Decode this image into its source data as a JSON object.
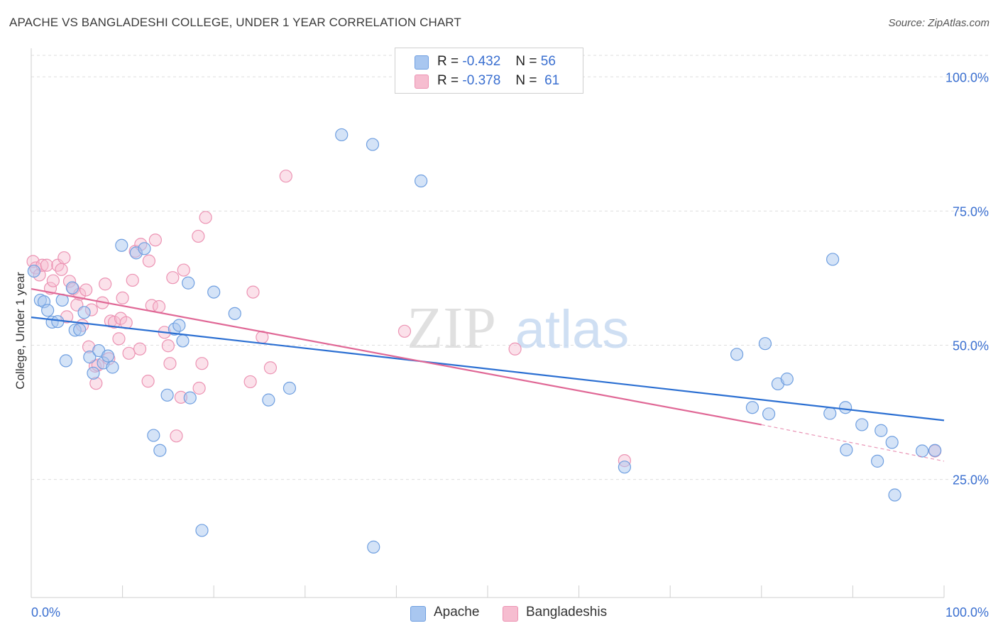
{
  "header": {
    "title": "APACHE VS BANGLADESHI COLLEGE, UNDER 1 YEAR CORRELATION CHART",
    "source": "Source: ZipAtlas.com"
  },
  "watermark": {
    "zip": "ZIP",
    "atlas": "atlas"
  },
  "legend": {
    "apache": {
      "r_label": "R =",
      "r_value": "-0.432",
      "n_label": "N =",
      "n_value": "56"
    },
    "bangladeshi": {
      "r_label": "R =",
      "r_value": "-0.378",
      "n_label": "N =",
      "n_value": "61"
    }
  },
  "bottom_legend": {
    "apache": "Apache",
    "bangladeshi": "Bangladeshis"
  },
  "colors": {
    "apache_fill": "#a9c7f0",
    "apache_stroke": "#6f9fe0",
    "apache_line": "#2b6fd2",
    "bang_fill": "#f6bdd0",
    "bang_stroke": "#ec93b3",
    "bang_line": "#e06896",
    "axis_text": "#3a6fd0"
  },
  "chart_data": {
    "type": "scatter",
    "title": "APACHE VS BANGLADESHI COLLEGE, UNDER 1 YEAR CORRELATION CHART",
    "xlabel": "",
    "ylabel": "College, Under 1 year",
    "xlim": [
      0,
      100
    ],
    "ylim": [
      3,
      104
    ],
    "x_tick_labels": [
      "0.0%",
      "100.0%"
    ],
    "y_ticks": [
      25,
      50,
      75,
      100
    ],
    "y_tick_labels": [
      "25.0%",
      "50.0%",
      "75.0%",
      "100.0%"
    ],
    "grid": true,
    "series": [
      {
        "name": "Apache",
        "r": -0.432,
        "n": 56,
        "trend": {
          "x": [
            0,
            100
          ],
          "y": [
            55.2,
            36.0
          ]
        },
        "points": [
          [
            0.3,
            63.8
          ],
          [
            1.0,
            58.4
          ],
          [
            1.4,
            58.1
          ],
          [
            1.8,
            56.5
          ],
          [
            2.3,
            54.3
          ],
          [
            2.9,
            54.4
          ],
          [
            3.4,
            58.4
          ],
          [
            3.8,
            47.1
          ],
          [
            4.5,
            60.7
          ],
          [
            4.8,
            52.8
          ],
          [
            5.3,
            52.9
          ],
          [
            5.8,
            56.1
          ],
          [
            6.4,
            47.8
          ],
          [
            6.8,
            44.8
          ],
          [
            7.4,
            49.0
          ],
          [
            7.9,
            46.7
          ],
          [
            8.4,
            48.0
          ],
          [
            8.9,
            45.9
          ],
          [
            9.9,
            68.6
          ],
          [
            11.5,
            67.2
          ],
          [
            12.4,
            68.0
          ],
          [
            13.4,
            33.2
          ],
          [
            14.1,
            30.4
          ],
          [
            14.9,
            40.7
          ],
          [
            15.7,
            53.0
          ],
          [
            16.2,
            53.7
          ],
          [
            16.6,
            50.8
          ],
          [
            17.2,
            61.6
          ],
          [
            17.4,
            40.2
          ],
          [
            18.7,
            15.5
          ],
          [
            20.0,
            59.9
          ],
          [
            22.3,
            55.9
          ],
          [
            26.0,
            39.8
          ],
          [
            28.3,
            42.0
          ],
          [
            34.0,
            89.2
          ],
          [
            37.4,
            87.4
          ],
          [
            37.5,
            12.4
          ],
          [
            42.7,
            80.6
          ],
          [
            65.0,
            27.3
          ],
          [
            77.3,
            48.3
          ],
          [
            79.0,
            38.4
          ],
          [
            80.4,
            50.3
          ],
          [
            80.8,
            37.2
          ],
          [
            81.8,
            42.8
          ],
          [
            82.8,
            43.7
          ],
          [
            87.5,
            37.3
          ],
          [
            87.8,
            66.0
          ],
          [
            89.2,
            38.4
          ],
          [
            89.3,
            30.5
          ],
          [
            91.0,
            35.2
          ],
          [
            92.7,
            28.4
          ],
          [
            93.1,
            34.1
          ],
          [
            94.3,
            31.9
          ],
          [
            94.6,
            22.1
          ],
          [
            97.6,
            30.3
          ],
          [
            99.0,
            30.4
          ]
        ]
      },
      {
        "name": "Bangladeshis",
        "r": -0.378,
        "n": 61,
        "trend": {
          "x": [
            0,
            80
          ],
          "y": [
            60.5,
            35.2
          ]
        },
        "trend_dashed": {
          "x": [
            80,
            100
          ],
          "y": [
            35.2,
            28.4
          ]
        },
        "points": [
          [
            0.2,
            65.6
          ],
          [
            0.5,
            64.4
          ],
          [
            0.9,
            63.1
          ],
          [
            1.2,
            64.9
          ],
          [
            1.7,
            64.9
          ],
          [
            2.1,
            60.6
          ],
          [
            2.4,
            62.0
          ],
          [
            2.9,
            64.9
          ],
          [
            3.3,
            64.1
          ],
          [
            3.6,
            66.3
          ],
          [
            3.9,
            55.3
          ],
          [
            4.2,
            61.9
          ],
          [
            4.6,
            60.5
          ],
          [
            5.0,
            57.5
          ],
          [
            5.3,
            59.5
          ],
          [
            5.6,
            53.7
          ],
          [
            6.0,
            60.3
          ],
          [
            6.3,
            49.7
          ],
          [
            6.6,
            56.6
          ],
          [
            7.0,
            46.1
          ],
          [
            7.1,
            42.9
          ],
          [
            7.3,
            46.3
          ],
          [
            7.8,
            57.9
          ],
          [
            8.1,
            61.4
          ],
          [
            8.5,
            47.5
          ],
          [
            8.7,
            54.5
          ],
          [
            9.1,
            54.3
          ],
          [
            9.6,
            51.2
          ],
          [
            9.8,
            55.0
          ],
          [
            10.0,
            58.8
          ],
          [
            10.4,
            54.2
          ],
          [
            10.7,
            48.5
          ],
          [
            11.1,
            62.1
          ],
          [
            11.4,
            67.5
          ],
          [
            11.9,
            49.3
          ],
          [
            12.0,
            68.8
          ],
          [
            12.8,
            43.3
          ],
          [
            12.9,
            65.7
          ],
          [
            13.2,
            57.4
          ],
          [
            13.6,
            69.6
          ],
          [
            14.0,
            57.2
          ],
          [
            14.6,
            52.4
          ],
          [
            15.0,
            49.9
          ],
          [
            15.2,
            46.6
          ],
          [
            15.5,
            62.6
          ],
          [
            15.9,
            33.1
          ],
          [
            16.4,
            40.3
          ],
          [
            16.7,
            64.0
          ],
          [
            18.3,
            70.3
          ],
          [
            18.4,
            42.0
          ],
          [
            18.7,
            46.6
          ],
          [
            19.1,
            73.8
          ],
          [
            24.0,
            43.2
          ],
          [
            24.3,
            59.9
          ],
          [
            25.3,
            51.5
          ],
          [
            26.2,
            45.8
          ],
          [
            27.9,
            81.5
          ],
          [
            40.9,
            52.6
          ],
          [
            53.0,
            49.3
          ],
          [
            65.0,
            28.5
          ],
          [
            99.0,
            30.3
          ]
        ]
      }
    ]
  }
}
